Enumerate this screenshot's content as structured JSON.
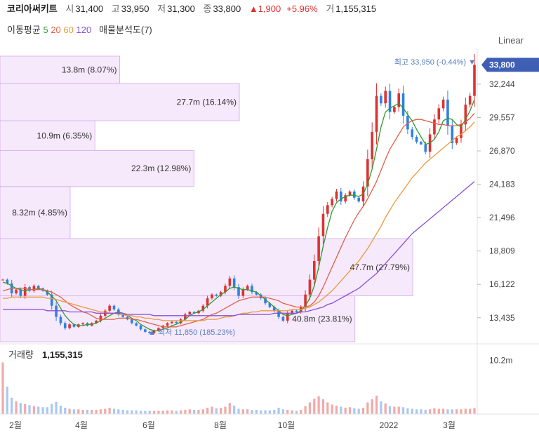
{
  "header": {
    "name": "코리아써키트",
    "open_label": "시",
    "open": "31,400",
    "high_label": "고",
    "high": "33,950",
    "low_label": "저",
    "low": "31,300",
    "close_label": "종",
    "close": "33,800",
    "change": "▲1,900",
    "change_pct": "+5.96%",
    "volume_label": "거",
    "volume": "1,155,315"
  },
  "indicators": {
    "ma_label": "이동평균",
    "ma_periods": [
      "5",
      "20",
      "60",
      "120"
    ],
    "ma_colors": [
      "#2e9a2e",
      "#e0604a",
      "#e89a3c",
      "#8a4fd8"
    ],
    "analysis": "매물분석도(7)"
  },
  "scale_mode": "Linear",
  "colors": {
    "up": "#e03030",
    "down": "#2f7fe8",
    "profile_fill": "#f6e9fb",
    "profile_stroke": "#dcb6ee",
    "current_tag": "#3f5fb5"
  },
  "chart_data": [
    {
      "type": "candlestick",
      "y_ticks": [
        "32,244",
        "29,557",
        "26,870",
        "24,183",
        "21,496",
        "18,809",
        "16,122",
        "13,435"
      ],
      "ylim": [
        11500,
        34500
      ],
      "x_ticks": [
        "2월",
        "4월",
        "6월",
        "8월",
        "10월",
        "2022",
        "3월"
      ],
      "current_price": "33,800",
      "max_label": "최고 33,950 (-0.44%) ▼",
      "min_label": "▲ 최저 11,850 (185.23%)",
      "close_series": [
        16500,
        16200,
        15400,
        15700,
        15200,
        15900,
        15600,
        16000,
        15800,
        15600,
        15300,
        14400,
        13500,
        13000,
        12600,
        12900,
        12700,
        12900,
        13000,
        12800,
        13000,
        13200,
        13600,
        14000,
        14400,
        14100,
        13700,
        13500,
        13300,
        13000,
        12800,
        12500,
        12300,
        12200,
        12400,
        12600,
        12800,
        13000,
        13100,
        13000,
        13300,
        13700,
        13900,
        13800,
        14000,
        14400,
        15000,
        15300,
        15200,
        15500,
        16000,
        16600,
        15900,
        15200,
        15700,
        16000,
        15500,
        15300,
        15000,
        14600,
        14300,
        14000,
        13500,
        13200,
        13800,
        14000,
        13900,
        14300,
        15300,
        16500,
        18000,
        20000,
        21800,
        22500,
        23000,
        23600,
        22800,
        23300,
        23600,
        23100,
        22800,
        24000,
        26200,
        28400,
        31300,
        30700,
        31700,
        30000,
        30400,
        31500,
        29700,
        28600,
        28000,
        27600,
        27400,
        26800,
        28200,
        29400,
        30300,
        31000,
        28900,
        27500,
        27900,
        29000,
        30600,
        31300,
        33800
      ],
      "ma_series": {
        "5": [
          16300,
          16200,
          16000,
          15800,
          15700,
          15600,
          15700,
          15700,
          15800,
          15700,
          15500,
          15200,
          14800,
          14200,
          13600,
          13200,
          12900,
          12800,
          12800,
          12900,
          12900,
          13000,
          13200,
          13400,
          13600,
          13800,
          13900,
          13800,
          13600,
          13400,
          13200,
          12900,
          12700,
          12500,
          12400,
          12400,
          12500,
          12600,
          12800,
          12900,
          13100,
          13300,
          13600,
          13800,
          13900,
          14100,
          14400,
          14700,
          15000,
          15300,
          15500,
          15800,
          15900,
          15800,
          15700,
          15700,
          15600,
          15500,
          15200,
          14900,
          14600,
          14300,
          14000,
          13700,
          13600,
          13700,
          13800,
          14000,
          14400,
          15000,
          16000,
          17500,
          19200,
          20700,
          22000,
          22700,
          23000,
          23200,
          23300,
          23300,
          23200,
          23400,
          24200,
          25400,
          27000,
          28800,
          30000,
          30300,
          30500,
          30700,
          30300,
          29800,
          29300,
          28600,
          28000,
          27400,
          27500,
          27800,
          28400,
          29300,
          29500,
          29400,
          29000,
          28800,
          29400,
          30100,
          31000
        ],
        "20": [
          15600,
          15700,
          15800,
          15800,
          15800,
          15800,
          15700,
          15700,
          15700,
          15700,
          15600,
          15500,
          15300,
          15100,
          14800,
          14500,
          14300,
          14100,
          13900,
          13800,
          13600,
          13400,
          13300,
          13300,
          13300,
          13300,
          13400,
          13400,
          13400,
          13300,
          13300,
          13200,
          13100,
          13000,
          12900,
          12800,
          12700,
          12700,
          12700,
          12700,
          12800,
          12900,
          13000,
          13100,
          13200,
          13300,
          13500,
          13700,
          13800,
          14000,
          14200,
          14400,
          14600,
          14800,
          14900,
          15000,
          15100,
          15100,
          15100,
          15100,
          15000,
          14900,
          14800,
          14600,
          14500,
          14400,
          14300,
          14300,
          14300,
          14400,
          14700,
          15200,
          15900,
          16700,
          17500,
          18300,
          19100,
          19900,
          20600,
          21300,
          21900,
          22400,
          23000,
          23700,
          24400,
          25300,
          26200,
          27000,
          27600,
          28200,
          28800,
          29100,
          29300,
          29400,
          29400,
          29300,
          29200,
          29100,
          29000,
          29000,
          28900,
          28900,
          28900,
          29000,
          29200,
          29500,
          29900
        ],
        "60": [
          15000,
          15000,
          15100,
          15100,
          15100,
          15100,
          15100,
          15100,
          15100,
          15100,
          15000,
          15000,
          14900,
          14800,
          14700,
          14600,
          14500,
          14400,
          14300,
          14200,
          14100,
          14000,
          13900,
          13900,
          13800,
          13800,
          13700,
          13700,
          13600,
          13600,
          13500,
          13500,
          13400,
          13400,
          13300,
          13300,
          13200,
          13200,
          13200,
          13200,
          13200,
          13200,
          13200,
          13200,
          13200,
          13200,
          13300,
          13300,
          13300,
          13400,
          13500,
          13500,
          13600,
          13700,
          13800,
          13800,
          13900,
          13900,
          14000,
          14000,
          14000,
          14000,
          14000,
          14000,
          14000,
          14100,
          14100,
          14100,
          14200,
          14300,
          14500,
          14700,
          15000,
          15300,
          15600,
          16000,
          16400,
          16800,
          17200,
          17600,
          18000,
          18500,
          19000,
          19600,
          20200,
          20800,
          21500,
          22100,
          22700,
          23200,
          23700,
          24200,
          24700,
          25100,
          25500,
          25900,
          26200,
          26500,
          26800,
          27100,
          27400,
          27700,
          28000,
          28200,
          28500,
          28800,
          29200
        ],
        "120": [
          14100,
          14100,
          14100,
          14100,
          14100,
          14100,
          14100,
          14100,
          14100,
          14100,
          14000,
          14000,
          14000,
          14000,
          14000,
          13900,
          13900,
          13900,
          13900,
          13900,
          13900,
          13800,
          13800,
          13800,
          13800,
          13800,
          13800,
          13800,
          13700,
          13700,
          13700,
          13700,
          13700,
          13700,
          13600,
          13600,
          13600,
          13600,
          13600,
          13600,
          13600,
          13600,
          13600,
          13600,
          13600,
          13600,
          13600,
          13600,
          13600,
          13600,
          13600,
          13600,
          13600,
          13700,
          13700,
          13700,
          13700,
          13700,
          13700,
          13700,
          13700,
          13800,
          13800,
          13800,
          13800,
          13800,
          13800,
          13900,
          13900,
          14000,
          14100,
          14200,
          14300,
          14500,
          14600,
          14800,
          15000,
          15200,
          15400,
          15600,
          15800,
          16100,
          16400,
          16700,
          17000,
          17400,
          17800,
          18200,
          18600,
          19000,
          19400,
          19800,
          20200,
          20500,
          20800,
          21100,
          21400,
          21700,
          22000,
          22300,
          22600,
          22900,
          23200,
          23500,
          23800,
          24100,
          24400
        ]
      },
      "volume_profile": [
        {
          "low": 32300,
          "high": 34500,
          "label": "13.8m (8.07%)",
          "fraction": 0.29
        },
        {
          "low": 29300,
          "high": 32300,
          "label": "27.7m (16.14%)",
          "fraction": 0.58
        },
        {
          "low": 26900,
          "high": 29300,
          "label": "10.9m (6.35%)",
          "fraction": 0.23
        },
        {
          "low": 24000,
          "high": 26900,
          "label": "22.3m (12.98%)",
          "fraction": 0.47
        },
        {
          "low": 19800,
          "high": 24000,
          "label": "8.32m (4.85%)",
          "fraction": 0.17
        },
        {
          "low": 15200,
          "high": 19800,
          "label": "47.7m (27.79%)",
          "fraction": 1.0
        },
        {
          "low": 11500,
          "high": 15200,
          "label": "40.8m (23.81%)",
          "fraction": 0.86
        }
      ]
    },
    {
      "type": "bar",
      "title": "거래량",
      "value": "1,155,315",
      "y_tick": "10.2m",
      "ylim": [
        0,
        12000000
      ],
      "values": [
        9800000,
        5200000,
        3100000,
        2400000,
        2100000,
        1900000,
        1700000,
        1500000,
        1400000,
        1300000,
        1300000,
        1900000,
        2300000,
        1600000,
        1200000,
        1000000,
        900000,
        900000,
        800000,
        800000,
        800000,
        800000,
        900000,
        1000000,
        1200000,
        1000000,
        900000,
        800000,
        700000,
        700000,
        700000,
        600000,
        600000,
        600000,
        600000,
        600000,
        600000,
        700000,
        700000,
        600000,
        700000,
        800000,
        900000,
        800000,
        800000,
        900000,
        1200000,
        1400000,
        1100000,
        1200000,
        1400000,
        2100000,
        1600000,
        1000000,
        900000,
        900000,
        800000,
        800000,
        700000,
        700000,
        700000,
        800000,
        1200000,
        900000,
        800000,
        700000,
        600000,
        800000,
        1500000,
        2200000,
        2900000,
        3400000,
        2800000,
        2200000,
        1800000,
        1600000,
        1400000,
        1200000,
        1300000,
        1100000,
        1000000,
        1200000,
        2200000,
        2800000,
        3500000,
        2400000,
        2000000,
        1500000,
        1400000,
        1400000,
        1300000,
        1100000,
        1000000,
        900000,
        900000,
        800000,
        900000,
        1100000,
        1000000,
        1000000,
        900000,
        900000,
        900000,
        900000,
        1000000,
        1000000,
        1155315
      ]
    }
  ]
}
